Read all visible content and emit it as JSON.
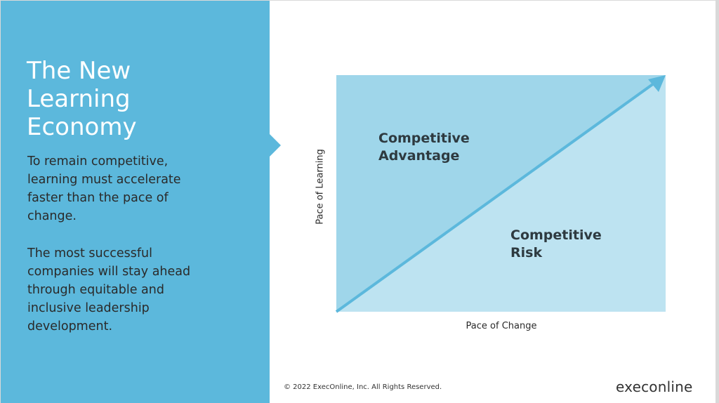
{
  "slide": {
    "title": "The New\nLearning\nEconomy",
    "paragraph1": "To remain competitive,\nlearning must accelerate\nfaster than the pace of\nchange.",
    "paragraph2": "The most successful\ncompanies will stay ahead\nthrough equitable and\ninclusive leadership\ndevelopment."
  },
  "diagram": {
    "upper_region_label": "Competitive\nAdvantage",
    "lower_region_label": "Competitive\nRisk",
    "y_axis_label": "Pace of Learning",
    "x_axis_label": "Pace of Change",
    "colors": {
      "upper_region": "#9fd6ea",
      "lower_region": "#bde3f1",
      "arrow": "#5cb8dc",
      "panel": "#5cb8dc"
    }
  },
  "footer": {
    "copyright": "© 2022 ExecOnline, Inc. All Rights Reserved.",
    "logo": "execonline"
  }
}
